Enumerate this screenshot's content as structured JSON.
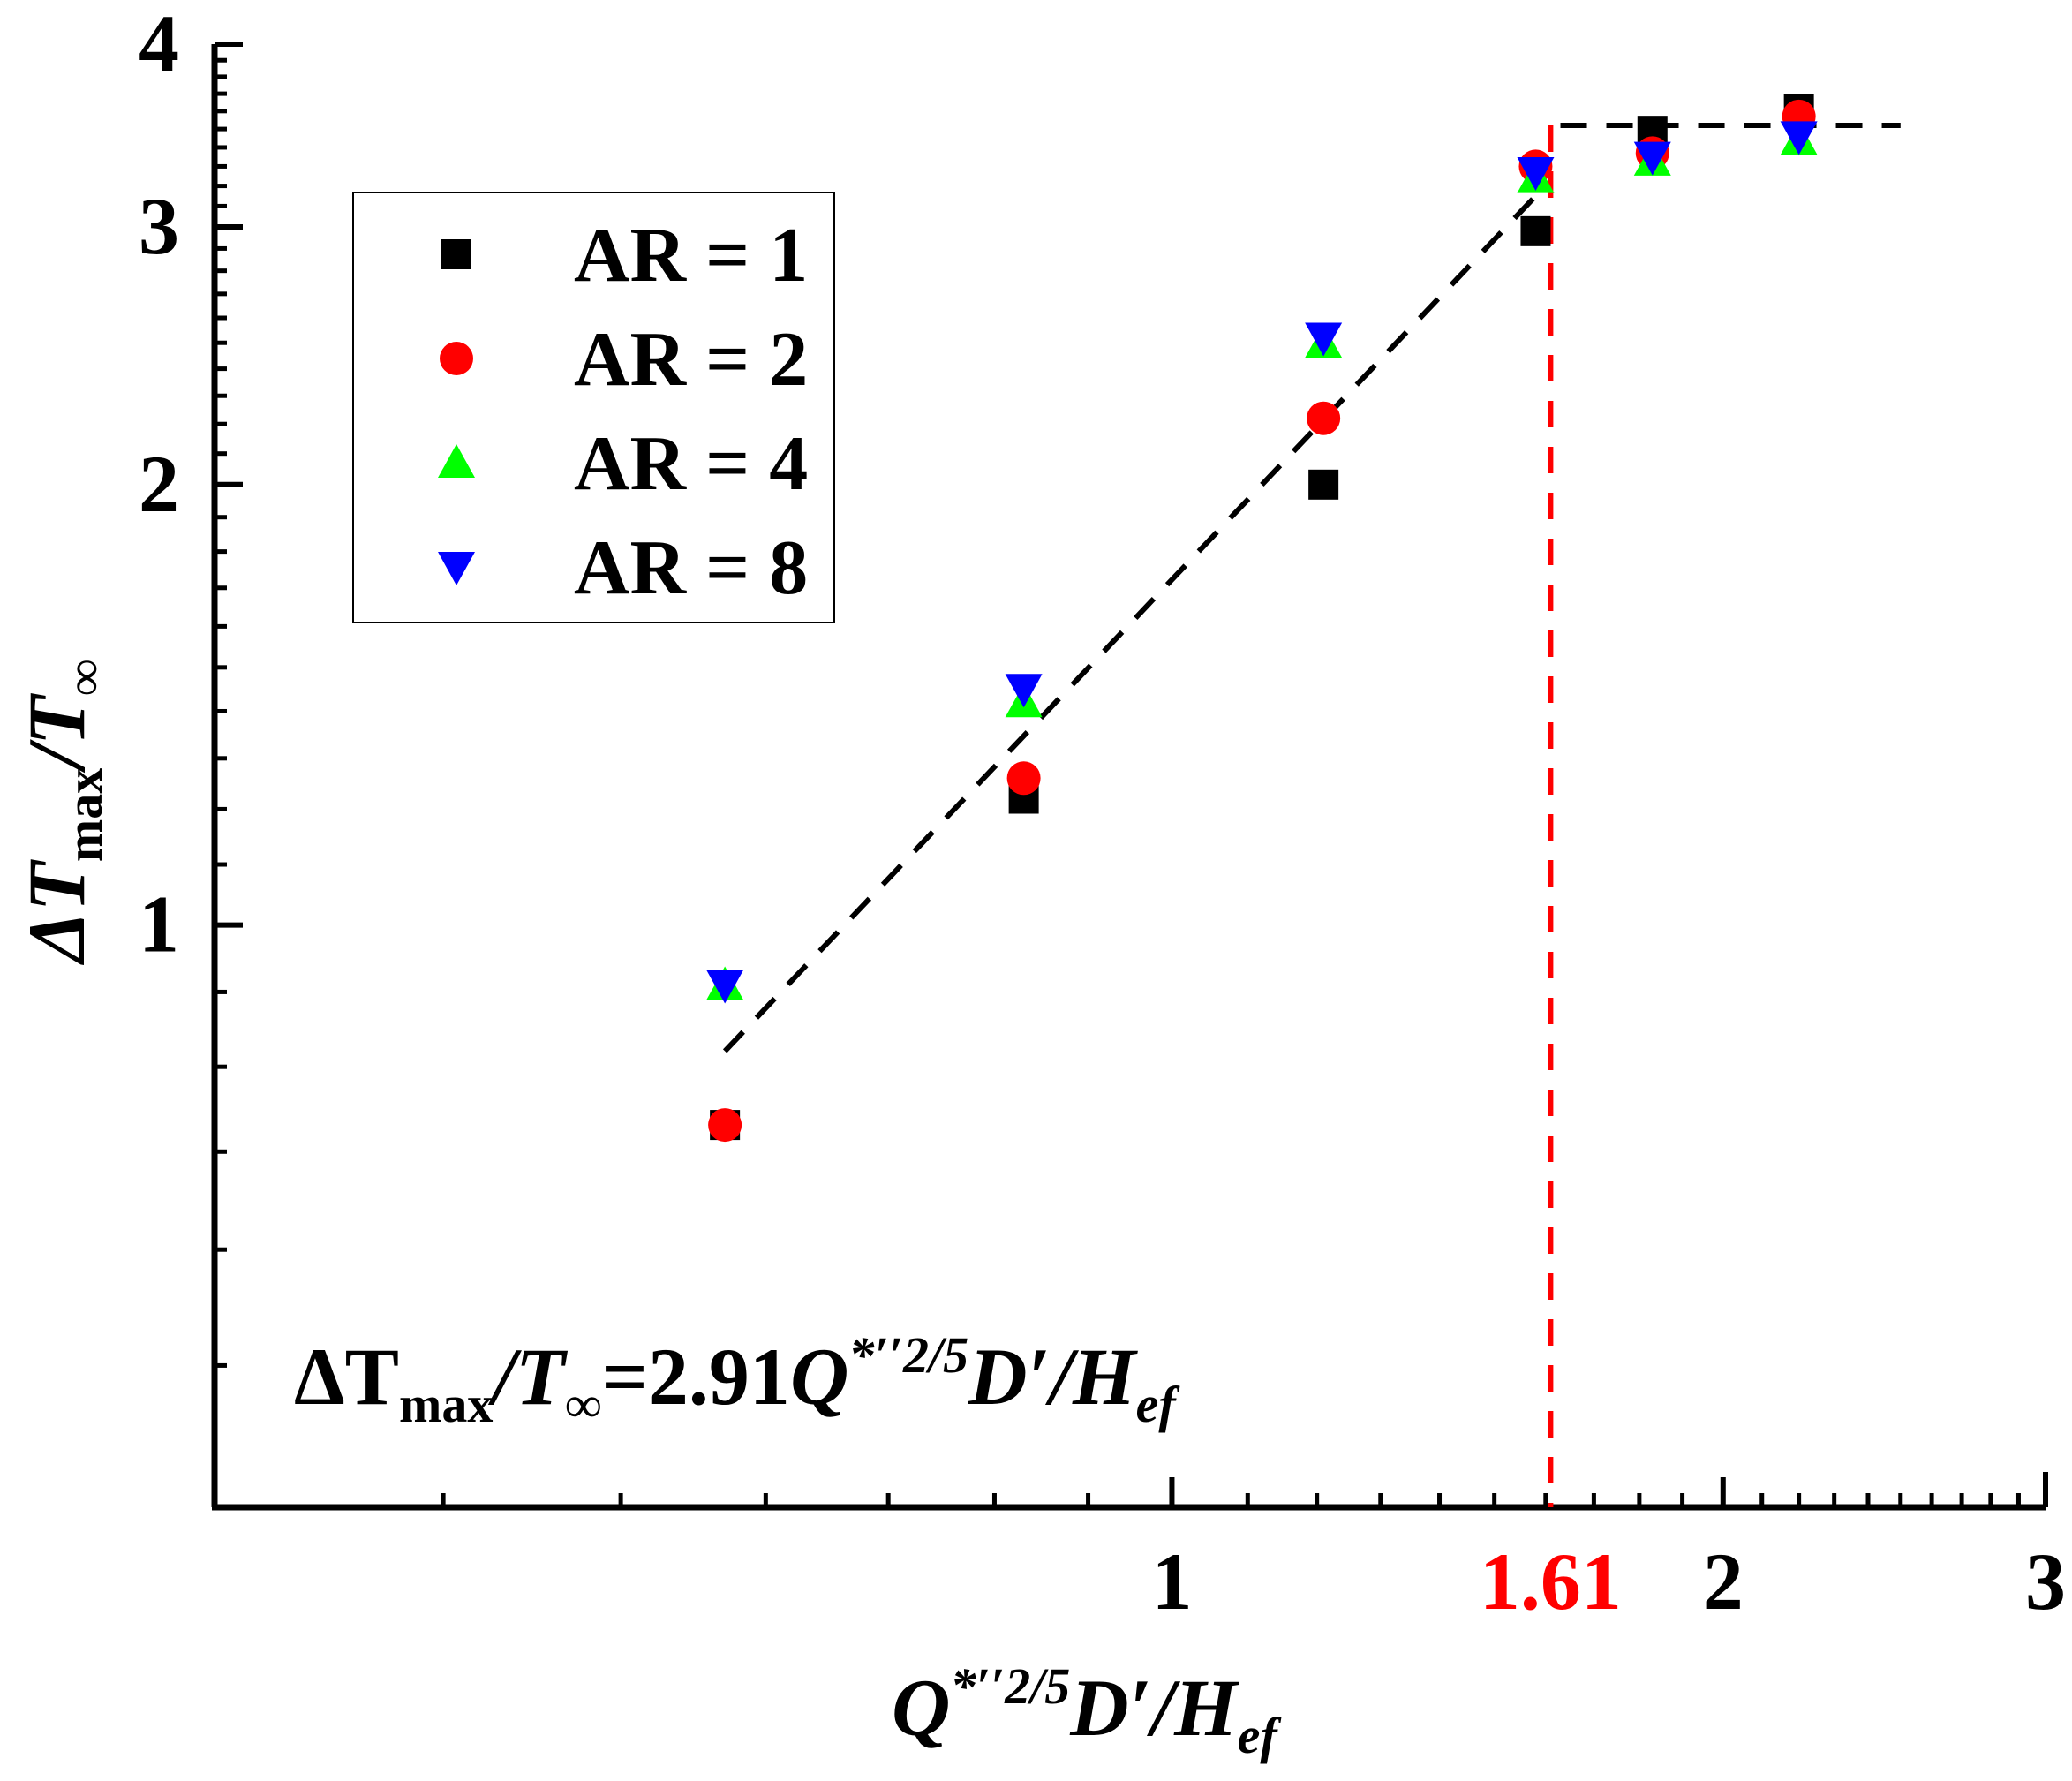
{
  "chart_data": {
    "type": "scatter",
    "xscale": "log",
    "yscale": "log",
    "xlim": [
      0.3,
      3.0
    ],
    "ylim": [
      0.4,
      4.0
    ],
    "xticks_major": [
      {
        "value": 1,
        "label": "1"
      },
      {
        "value": 2,
        "label": "2"
      },
      {
        "value": 3,
        "label": "3"
      }
    ],
    "xtick_highlight": {
      "value": 1.61,
      "label": "1.61",
      "color": "#ff0000"
    },
    "yticks_major": [
      {
        "value": 1,
        "label": "1"
      },
      {
        "value": 2,
        "label": "2"
      },
      {
        "value": 3,
        "label": "3"
      },
      {
        "value": 4,
        "label": "4"
      }
    ],
    "xlabel": {
      "main": "Q",
      "sup": "*′′2/5",
      "mid": "D′/H",
      "sub": "ef"
    },
    "ylabel": {
      "main": "ΔT",
      "sub": "max",
      "tail": "/T",
      "sub2": "∞"
    },
    "annotation": {
      "a": "ΔT",
      "a_sub": "max",
      "b": "/T",
      "b_sub": "∞",
      "c": "=2.91",
      "d": "Q",
      "d_sup": "*′′2/5",
      "e": "D′/H",
      "e_sub": "ef"
    },
    "legend": {
      "placement": "upper-left"
    },
    "series": [
      {
        "name": "AR = 1",
        "marker": "square",
        "color": "#000000",
        "x": [
          0.57,
          0.83,
          1.21,
          1.58,
          1.83,
          2.2
        ],
        "y": [
          0.73,
          1.22,
          2.0,
          2.98,
          3.49,
          3.61
        ]
      },
      {
        "name": "AR = 2",
        "marker": "circle",
        "color": "#ff0000",
        "x": [
          0.57,
          0.83,
          1.21,
          1.58,
          1.83,
          2.2
        ],
        "y": [
          0.73,
          1.26,
          2.22,
          3.3,
          3.37,
          3.57
        ]
      },
      {
        "name": "AR = 4",
        "marker": "triangle-up",
        "color": "#00ff00",
        "x": [
          0.57,
          0.83,
          1.21,
          1.58,
          1.83,
          2.2
        ],
        "y": [
          0.91,
          1.42,
          2.5,
          3.24,
          3.33,
          3.44
        ]
      },
      {
        "name": "AR = 8",
        "marker": "triangle-down",
        "color": "#0000ff",
        "x": [
          0.57,
          0.83,
          1.21,
          1.58,
          1.83,
          2.2
        ],
        "y": [
          0.91,
          1.45,
          2.52,
          3.27,
          3.35,
          3.46
        ]
      }
    ],
    "fit_lines": [
      {
        "style": "dashed",
        "color": "#000000",
        "points": [
          [
            0.57,
            0.82
          ],
          [
            1.58,
            3.15
          ]
        ]
      },
      {
        "style": "dashed",
        "color": "#000000",
        "points": [
          [
            1.63,
            3.52
          ],
          [
            2.5,
            3.52
          ]
        ]
      }
    ],
    "critical_line": {
      "style": "dashed",
      "color": "#ff0000",
      "x": 1.61
    }
  }
}
